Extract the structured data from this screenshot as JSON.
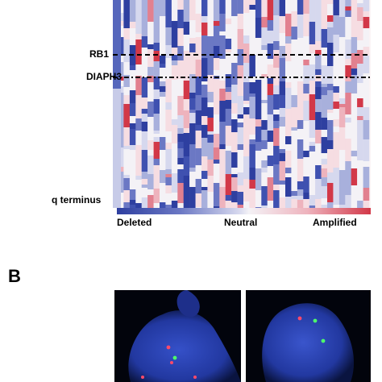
{
  "panel_a": {
    "gene_labels": {
      "rb1": "RB1",
      "diaph3": "DIAPH3",
      "q_terminus": "q terminus"
    },
    "colorbar": {
      "low_label": "Deleted",
      "mid_label": "Neutral",
      "high_label": "Amplified",
      "low_color": "#2e3fa0",
      "mid_color": "#f4f2f6",
      "high_color": "#d23848"
    }
  },
  "panel_b": {
    "letter": "B",
    "nucleus_color": "#2a3fb0",
    "signal_colors": [
      "#ff4a6a",
      "#4dff6a"
    ]
  }
}
